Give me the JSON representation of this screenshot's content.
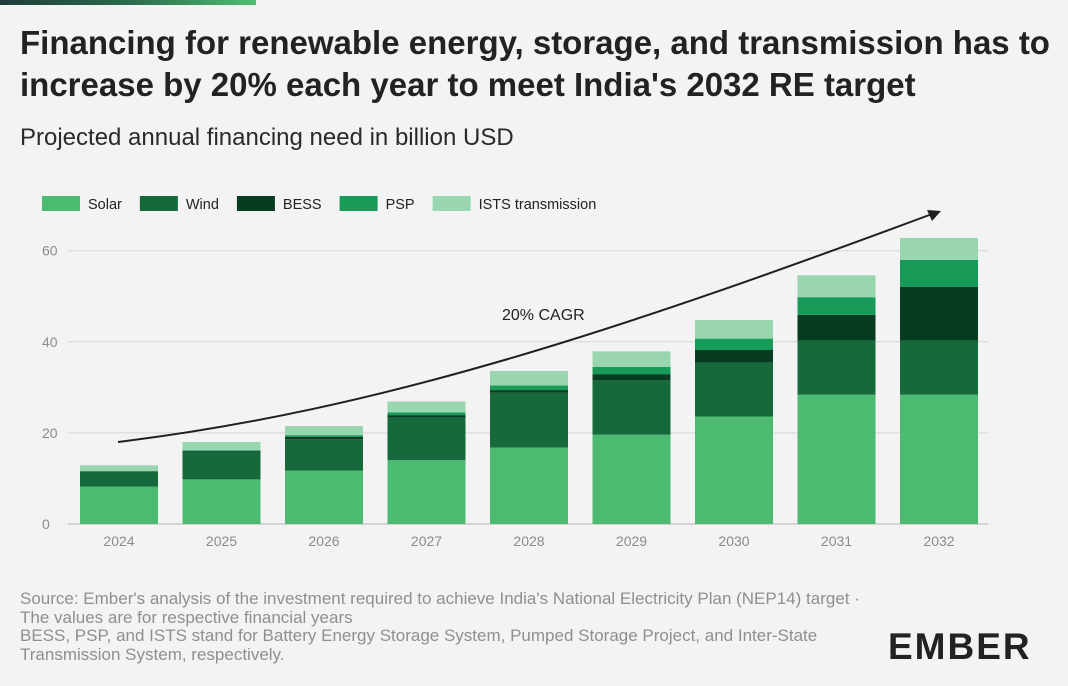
{
  "header": {
    "title": "Financing for renewable energy, storage, and transmission has to increase by 20% each year to meet India's 2032 RE target",
    "subtitle": "Projected annual financing need in billion USD"
  },
  "footer": {
    "source": "Source: Ember's analysis of the investment required to achieve India's National Electricity Plan (NEP14) target · The values are for respective financial years",
    "note": "BESS, PSP, and ISTS stand for Battery Energy Storage System, Pumped Storage Project, and Inter-State Transmission System, respectively.",
    "logo_text": "EMBER"
  },
  "chart_data": {
    "type": "bar",
    "stacked": true,
    "categories": [
      "2024",
      "2025",
      "2026",
      "2027",
      "2028",
      "2029",
      "2030",
      "2031",
      "2032"
    ],
    "series": [
      {
        "name": "Solar",
        "color": "#4dba72",
        "values": [
          8.2,
          9.8,
          11.7,
          14.0,
          16.8,
          19.6,
          23.6,
          28.4,
          28.4
        ]
      },
      {
        "name": "Wind",
        "color": "#16693b",
        "values": [
          3.4,
          6.0,
          6.9,
          9.4,
          12.0,
          12.0,
          11.8,
          11.9,
          11.9
        ]
      },
      {
        "name": "BESS",
        "color": "#073b22",
        "values": [
          0.0,
          0.2,
          0.5,
          0.5,
          0.6,
          1.3,
          2.8,
          5.6,
          11.8
        ]
      },
      {
        "name": "PSP",
        "color": "#189b59",
        "values": [
          0.0,
          0.2,
          0.4,
          0.6,
          1.0,
          1.6,
          2.5,
          3.9,
          5.9
        ]
      },
      {
        "name": "ISTS transmission",
        "color": "#99d6b0",
        "values": [
          1.3,
          1.8,
          2.0,
          2.4,
          3.2,
          3.4,
          4.1,
          4.8,
          4.8
        ]
      }
    ],
    "ylim": [
      0,
      65
    ],
    "yticks": [
      0,
      20,
      40,
      60
    ],
    "grid": true,
    "legend_position": "top-left",
    "annotation": {
      "label": "20% CAGR",
      "type": "curved-arrow"
    }
  }
}
